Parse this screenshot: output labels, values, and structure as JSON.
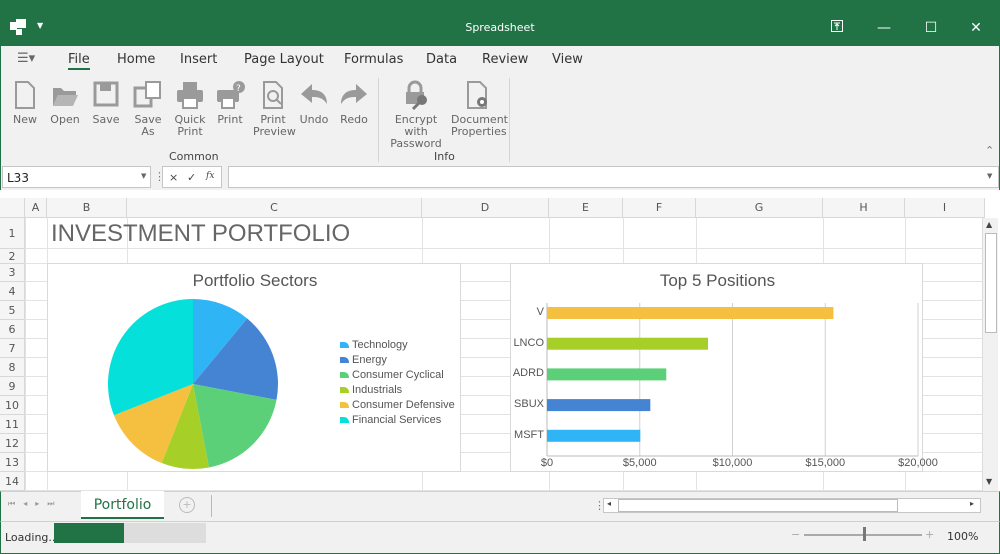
{
  "app": {
    "title": "Spreadsheet",
    "accent": "#217346"
  },
  "ribbon": {
    "tabs": [
      {
        "label": "File",
        "active": true
      },
      {
        "label": "Home"
      },
      {
        "label": "Insert"
      },
      {
        "label": "Page Layout"
      },
      {
        "label": "Formulas"
      },
      {
        "label": "Data"
      },
      {
        "label": "Review"
      },
      {
        "label": "View"
      }
    ],
    "buttons": [
      {
        "l1": "New",
        "l2": "",
        "icon": "new-document-icon"
      },
      {
        "l1": "Open",
        "l2": "",
        "icon": "open-folder-icon"
      },
      {
        "l1": "Save",
        "l2": "",
        "icon": "save-icon"
      },
      {
        "l1": "Save As",
        "l2": "",
        "icon": "save-as-icon"
      },
      {
        "l1": "Quick",
        "l2": "Print",
        "icon": "printer-icon"
      },
      {
        "l1": "Print",
        "l2": "",
        "icon": "print-dialog-icon"
      },
      {
        "l1": "Print",
        "l2": "Preview",
        "icon": "print-preview-icon"
      },
      {
        "l1": "Undo",
        "l2": "",
        "icon": "undo-icon"
      },
      {
        "l1": "Redo",
        "l2": "",
        "icon": "redo-icon"
      },
      {
        "l1": "Encrypt with",
        "l2": "Password",
        "icon": "lock-key-icon"
      },
      {
        "l1": "Document",
        "l2": "Properties",
        "icon": "document-gear-icon"
      }
    ],
    "groups": [
      "Common",
      "Info"
    ]
  },
  "formula_bar": {
    "name_box": "L33",
    "formula": "",
    "cancel": "×",
    "enter": "✓",
    "fx": "fx"
  },
  "grid": {
    "columns": [
      "A",
      "B",
      "C",
      "D",
      "E",
      "F",
      "G",
      "H",
      "I"
    ],
    "rows": [
      "1",
      "2",
      "3",
      "4",
      "5",
      "6",
      "7",
      "8",
      "9",
      "10",
      "11",
      "12",
      "13",
      "14"
    ],
    "title_cell": "INVESTMENT PORTFOLIO"
  },
  "chart_data": [
    {
      "type": "pie",
      "title": "Portfolio Sectors",
      "legend_position": "right",
      "unit": "percent share (estimated)",
      "categories": [
        "Technology",
        "Energy",
        "Consumer Cyclical",
        "Industrials",
        "Consumer Defensive",
        "Financial Services"
      ],
      "values": [
        11,
        17,
        19,
        9,
        13,
        31
      ],
      "colors": [
        "#2fb5f5",
        "#4584d3",
        "#5bd078",
        "#a6cf28",
        "#f5c040",
        "#05e0db"
      ]
    },
    {
      "type": "bar",
      "orientation": "horizontal",
      "title": "Top 5 Positions",
      "categories": [
        "V",
        "LNCO",
        "ADRD",
        "SBUX",
        "MSFT"
      ],
      "values": [
        15440,
        8680,
        6430,
        5570,
        5030
      ],
      "colors": [
        "#f5c040",
        "#a6cf28",
        "#5bd078",
        "#4584d3",
        "#2fb5f5"
      ],
      "xlim": [
        0,
        20000
      ],
      "xticks": [
        "$0",
        "$5,000",
        "$10,000",
        "$15,000",
        "$20,000"
      ],
      "grid": true
    }
  ],
  "sheets": {
    "tabs": [
      "Portfolio"
    ],
    "active": "Portfolio"
  },
  "status": {
    "text": "Loading...",
    "progress_percent": 46,
    "zoom": "100%",
    "zoom_slider_fraction": 0.5
  }
}
